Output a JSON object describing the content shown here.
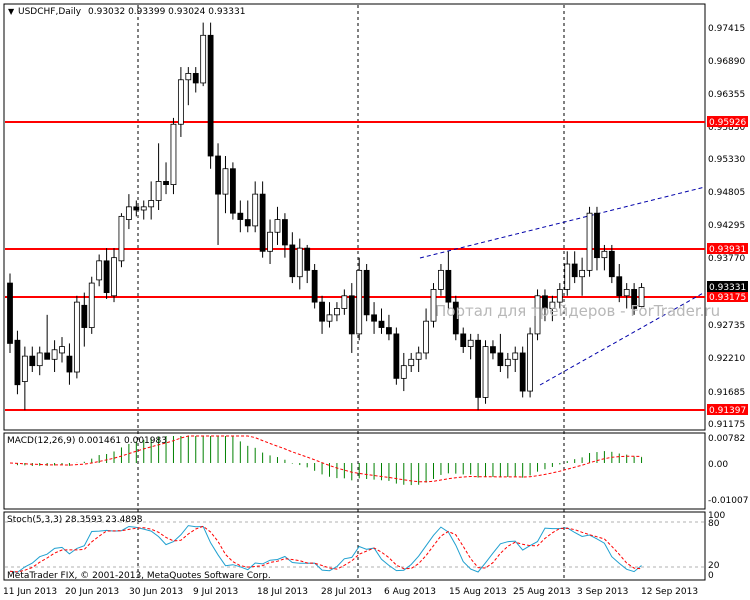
{
  "header": {
    "symbol": "USDCHF,Daily",
    "ohlc": "0.93032 0.93399 0.93024 0.93331"
  },
  "watermark": "Портал для трейдеров - ForTrader.ru",
  "copyright": "MetaTrader FIX, © 2001-2013, MetaQuotes Software Corp.",
  "colors": {
    "grid": "#c0c0c0",
    "level": "#ff0000",
    "trend": "#0000aa",
    "candle": "#000000",
    "macd_hist": "#008000",
    "macd_signal": "#ff0000",
    "stoch_main": "#20a0d0",
    "stoch_signal": "#ff0000"
  },
  "price_axis": {
    "labels": [
      "0.97415",
      "0.96890",
      "0.96355",
      "0.95830",
      "0.95330",
      "0.94805",
      "0.94295",
      "0.93770",
      "0.92735",
      "0.92210",
      "0.91685",
      "0.91175"
    ],
    "current": "0.93331"
  },
  "levels": [
    "0.95926",
    "0.93931",
    "0.93175",
    "0.91397"
  ],
  "macd": {
    "title": "MACD(12,26,9) 0.001461 0.001983",
    "axis": [
      "0.00782",
      "0.00",
      "-0.01007"
    ]
  },
  "stoch": {
    "title": "Stoch(5,3,3) 28.3593 23.4898",
    "axis": [
      "100",
      "80",
      "20",
      "0"
    ]
  },
  "date_labels": [
    "11 Jun 2013",
    "20 Jun 2013",
    "30 Jun 2013",
    "9 Jul 2013",
    "18 Jul 2013",
    "28 Jul 2013",
    "6 Aug 2013",
    "15 Aug 2013",
    "25 Aug 2013",
    "3 Sep 2013",
    "12 Sep 2013"
  ],
  "candles": [
    [
      0.934,
      0.9355,
      0.923,
      0.9245
    ],
    [
      0.925,
      0.9265,
      0.9165,
      0.918
    ],
    [
      0.9185,
      0.924,
      0.914,
      0.9225
    ],
    [
      0.9225,
      0.924,
      0.92,
      0.921
    ],
    [
      0.921,
      0.924,
      0.9195,
      0.923
    ],
    [
      0.923,
      0.929,
      0.922,
      0.922
    ],
    [
      0.922,
      0.925,
      0.92,
      0.9235
    ],
    [
      0.923,
      0.9255,
      0.9215,
      0.924
    ],
    [
      0.9225,
      0.9245,
      0.918,
      0.92
    ],
    [
      0.92,
      0.932,
      0.919,
      0.931
    ],
    [
      0.9305,
      0.9325,
      0.924,
      0.927
    ],
    [
      0.927,
      0.935,
      0.926,
      0.934
    ],
    [
      0.9345,
      0.9385,
      0.9335,
      0.9375
    ],
    [
      0.9375,
      0.9395,
      0.9315,
      0.9325
    ],
    [
      0.932,
      0.9395,
      0.931,
      0.938
    ],
    [
      0.9375,
      0.945,
      0.9365,
      0.9445
    ],
    [
      0.944,
      0.948,
      0.9425,
      0.946
    ],
    [
      0.946,
      0.947,
      0.9445,
      0.9455
    ],
    [
      0.9455,
      0.947,
      0.944,
      0.946
    ],
    [
      0.946,
      0.95,
      0.944,
      0.947
    ],
    [
      0.947,
      0.956,
      0.9455,
      0.95
    ],
    [
      0.95,
      0.953,
      0.948,
      0.9495
    ],
    [
      0.9495,
      0.96,
      0.948,
      0.959
    ],
    [
      0.959,
      0.968,
      0.957,
      0.966
    ],
    [
      0.966,
      0.968,
      0.962,
      0.967
    ],
    [
      0.967,
      0.968,
      0.964,
      0.9655
    ],
    [
      0.9655,
      0.975,
      0.965,
      0.973
    ],
    [
      0.973,
      0.975,
      0.952,
      0.954
    ],
    [
      0.954,
      0.956,
      0.94,
      0.948
    ],
    [
      0.948,
      0.954,
      0.945,
      0.952
    ],
    [
      0.952,
      0.953,
      0.944,
      0.945
    ],
    [
      0.945,
      0.947,
      0.942,
      0.944
    ],
    [
      0.944,
      0.947,
      0.942,
      0.943
    ],
    [
      0.943,
      0.95,
      0.942,
      0.948
    ],
    [
      0.948,
      0.95,
      0.938,
      0.939
    ],
    [
      0.939,
      0.944,
      0.937,
      0.942
    ],
    [
      0.942,
      0.946,
      0.94,
      0.944
    ],
    [
      0.944,
      0.945,
      0.938,
      0.94
    ],
    [
      0.94,
      0.942,
      0.934,
      0.935
    ],
    [
      0.935,
      0.941,
      0.933,
      0.9395
    ],
    [
      0.9395,
      0.94,
      0.934,
      0.936
    ],
    [
      0.936,
      0.937,
      0.93,
      0.931
    ],
    [
      0.931,
      0.932,
      0.926,
      0.928
    ],
    [
      0.928,
      0.931,
      0.927,
      0.929
    ],
    [
      0.929,
      0.931,
      0.928,
      0.93
    ],
    [
      0.93,
      0.933,
      0.929,
      0.932
    ],
    [
      0.932,
      0.934,
      0.923,
      0.926
    ],
    [
      0.926,
      0.938,
      0.925,
      0.936
    ],
    [
      0.936,
      0.937,
      0.928,
      0.929
    ],
    [
      0.929,
      0.931,
      0.926,
      0.928
    ],
    [
      0.928,
      0.93,
      0.926,
      0.927
    ],
    [
      0.927,
      0.929,
      0.925,
      0.926
    ],
    [
      0.926,
      0.927,
      0.918,
      0.919
    ],
    [
      0.919,
      0.923,
      0.917,
      0.921
    ],
    [
      0.921,
      0.923,
      0.92,
      0.922
    ],
    [
      0.922,
      0.924,
      0.92,
      0.923
    ],
    [
      0.923,
      0.93,
      0.922,
      0.928
    ],
    [
      0.928,
      0.934,
      0.927,
      0.933
    ],
    [
      0.933,
      0.937,
      0.932,
      0.936
    ],
    [
      0.936,
      0.939,
      0.93,
      0.931
    ],
    [
      0.931,
      0.932,
      0.925,
      0.926
    ],
    [
      0.926,
      0.927,
      0.923,
      0.924
    ],
    [
      0.924,
      0.926,
      0.922,
      0.925
    ],
    [
      0.925,
      0.926,
      0.914,
      0.916
    ],
    [
      0.916,
      0.925,
      0.915,
      0.924
    ],
    [
      0.924,
      0.925,
      0.922,
      0.923
    ],
    [
      0.923,
      0.926,
      0.92,
      0.921
    ],
    [
      0.921,
      0.923,
      0.919,
      0.922
    ],
    [
      0.922,
      0.924,
      0.92,
      0.923
    ],
    [
      0.923,
      0.924,
      0.916,
      0.917
    ],
    [
      0.917,
      0.927,
      0.916,
      0.926
    ],
    [
      0.926,
      0.933,
      0.925,
      0.932
    ],
    [
      0.932,
      0.933,
      0.928,
      0.93
    ],
    [
      0.93,
      0.932,
      0.928,
      0.931
    ],
    [
      0.931,
      0.934,
      0.93,
      0.933
    ],
    [
      0.933,
      0.939,
      0.932,
      0.937
    ],
    [
      0.937,
      0.939,
      0.934,
      0.935
    ],
    [
      0.935,
      0.938,
      0.932,
      0.936
    ],
    [
      0.936,
      0.946,
      0.935,
      0.945
    ],
    [
      0.945,
      0.946,
      0.936,
      0.938
    ],
    [
      0.938,
      0.94,
      0.936,
      0.939
    ],
    [
      0.939,
      0.94,
      0.934,
      0.935
    ],
    [
      0.935,
      0.937,
      0.931,
      0.932
    ],
    [
      0.932,
      0.934,
      0.93,
      0.933
    ],
    [
      0.933,
      0.934,
      0.929,
      0.93
    ],
    [
      0.9303,
      0.934,
      0.9302,
      0.9333
    ]
  ]
}
